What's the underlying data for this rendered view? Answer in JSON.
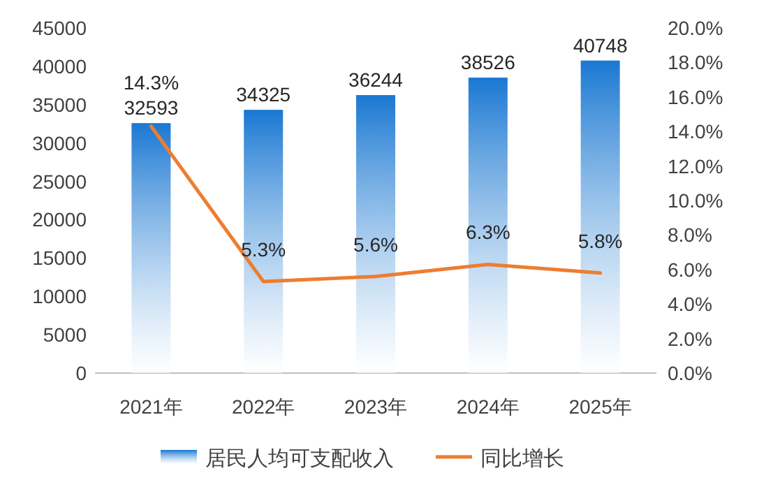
{
  "chart_data": {
    "type": "bar",
    "categories": [
      "2021年",
      "2022年",
      "2023年",
      "2024年",
      "2025年"
    ],
    "series": [
      {
        "name": "居民人均可支配收入",
        "color": "#1a78d2",
        "values": [
          32593,
          34325,
          36244,
          38526,
          40748
        ],
        "value_labels": [
          "32593",
          "34325",
          "36244",
          "38526",
          "40748"
        ]
      },
      {
        "name": "同比增长",
        "type": "line",
        "axis": "y2",
        "color": "#ed7d31",
        "values": [
          14.3,
          5.3,
          5.6,
          6.3,
          5.8
        ],
        "value_labels": [
          "14.3%",
          "5.3%",
          "5.6%",
          "6.3%",
          "5.8%"
        ]
      }
    ],
    "ylim": [
      0,
      45000
    ],
    "yticks": [
      0,
      5000,
      10000,
      15000,
      20000,
      25000,
      30000,
      35000,
      40000,
      45000
    ],
    "y2lim": [
      0,
      20
    ],
    "y2ticks": [
      {
        "value": 0,
        "label": "0.0%"
      },
      {
        "value": 2,
        "label": "2.0%"
      },
      {
        "value": 4,
        "label": "4.0%"
      },
      {
        "value": 6,
        "label": "6.0%"
      },
      {
        "value": 8,
        "label": "8.0%"
      },
      {
        "value": 10,
        "label": "10.0%"
      },
      {
        "value": 12,
        "label": "12.0%"
      },
      {
        "value": 14,
        "label": "14.0%"
      },
      {
        "value": 16,
        "label": "16.0%"
      },
      {
        "value": 18,
        "label": "18.0%"
      },
      {
        "value": 20,
        "label": "20.0%"
      }
    ],
    "legend": "bottom",
    "grid": false
  }
}
